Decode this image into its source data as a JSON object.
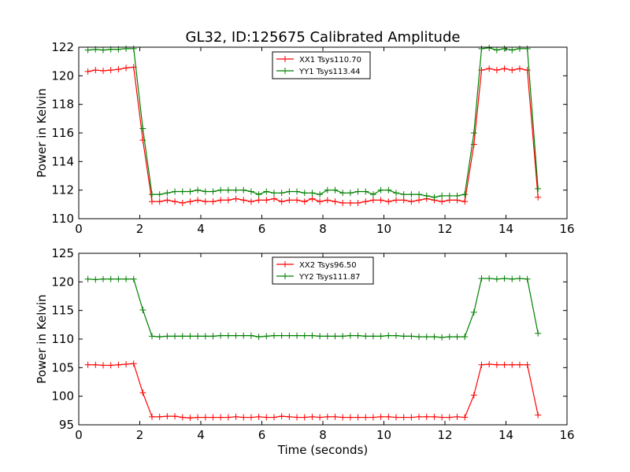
{
  "figure": {
    "title": "GL32, ID:125675 Calibrated Amplitude"
  },
  "chart_data": [
    {
      "type": "line",
      "xlabel": "",
      "ylabel": "Power in Kelvin",
      "xlim": [
        0,
        16
      ],
      "ylim": [
        110,
        122
      ],
      "xticks": [
        0,
        2,
        4,
        6,
        8,
        10,
        12,
        14,
        16
      ],
      "yticks": [
        110,
        112,
        114,
        116,
        118,
        120,
        122
      ],
      "grid": false,
      "legend_position": "top-center",
      "x": [
        0.3,
        0.55,
        0.8,
        1.05,
        1.3,
        1.55,
        1.8,
        2.1,
        2.4,
        2.65,
        2.9,
        3.15,
        3.4,
        3.65,
        3.9,
        4.15,
        4.4,
        4.65,
        4.9,
        5.15,
        5.4,
        5.65,
        5.9,
        6.15,
        6.4,
        6.65,
        6.9,
        7.15,
        7.4,
        7.65,
        7.9,
        8.15,
        8.4,
        8.65,
        8.9,
        9.15,
        9.4,
        9.65,
        9.9,
        10.15,
        10.4,
        10.65,
        10.9,
        11.15,
        11.4,
        11.65,
        11.9,
        12.15,
        12.4,
        12.65,
        12.95,
        13.2,
        13.45,
        13.7,
        13.95,
        14.2,
        14.45,
        14.7,
        15.05
      ],
      "series": [
        {
          "name": "XX1 Tsys110.70",
          "color": "#ff0000",
          "values": [
            120.3,
            120.4,
            120.35,
            120.4,
            120.45,
            120.55,
            120.6,
            115.5,
            111.2,
            111.2,
            111.3,
            111.2,
            111.1,
            111.2,
            111.3,
            111.2,
            111.2,
            111.3,
            111.3,
            111.4,
            111.3,
            111.2,
            111.3,
            111.3,
            111.4,
            111.2,
            111.3,
            111.3,
            111.2,
            111.4,
            111.2,
            111.3,
            111.2,
            111.1,
            111.1,
            111.1,
            111.2,
            111.3,
            111.3,
            111.2,
            111.3,
            111.3,
            111.2,
            111.3,
            111.4,
            111.3,
            111.2,
            111.3,
            111.3,
            111.2,
            115.2,
            120.4,
            120.5,
            120.4,
            120.5,
            120.4,
            120.5,
            120.4,
            111.5
          ]
        },
        {
          "name": "YY1 Tsys113.44",
          "color": "#008000",
          "values": [
            121.8,
            121.85,
            121.8,
            121.85,
            121.85,
            121.9,
            121.9,
            116.3,
            111.7,
            111.7,
            111.8,
            111.9,
            111.9,
            111.9,
            112.0,
            111.9,
            111.9,
            112.0,
            112.0,
            112.0,
            112.0,
            111.9,
            111.7,
            111.9,
            111.8,
            111.8,
            111.9,
            111.9,
            111.8,
            111.8,
            111.7,
            112.0,
            112.0,
            111.8,
            111.8,
            111.9,
            111.9,
            111.7,
            112.0,
            112.0,
            111.8,
            111.7,
            111.7,
            111.7,
            111.6,
            111.5,
            111.6,
            111.6,
            111.6,
            111.7,
            116.0,
            121.9,
            121.95,
            121.8,
            121.9,
            121.8,
            121.9,
            121.9,
            112.1
          ]
        }
      ]
    },
    {
      "type": "line",
      "xlabel": "Time (seconds)",
      "ylabel": "Power in Kelvin",
      "xlim": [
        0,
        16
      ],
      "ylim": [
        95,
        125
      ],
      "xticks": [
        0,
        2,
        4,
        6,
        8,
        10,
        12,
        14,
        16
      ],
      "yticks": [
        95,
        100,
        105,
        110,
        115,
        120,
        125
      ],
      "grid": false,
      "legend_position": "top-center",
      "x": [
        0.3,
        0.55,
        0.8,
        1.05,
        1.3,
        1.55,
        1.8,
        2.1,
        2.4,
        2.65,
        2.9,
        3.15,
        3.4,
        3.65,
        3.9,
        4.15,
        4.4,
        4.65,
        4.9,
        5.15,
        5.4,
        5.65,
        5.9,
        6.15,
        6.4,
        6.65,
        6.9,
        7.15,
        7.4,
        7.65,
        7.9,
        8.15,
        8.4,
        8.65,
        8.9,
        9.15,
        9.4,
        9.65,
        9.9,
        10.15,
        10.4,
        10.65,
        10.9,
        11.15,
        11.4,
        11.65,
        11.9,
        12.15,
        12.4,
        12.65,
        12.95,
        13.2,
        13.45,
        13.7,
        13.95,
        14.2,
        14.45,
        14.7,
        15.05
      ],
      "series": [
        {
          "name": "XX2 Tsys96.50",
          "color": "#ff0000",
          "values": [
            105.5,
            105.5,
            105.4,
            105.4,
            105.5,
            105.6,
            105.7,
            100.6,
            96.4,
            96.4,
            96.5,
            96.5,
            96.3,
            96.2,
            96.3,
            96.3,
            96.3,
            96.3,
            96.3,
            96.4,
            96.3,
            96.3,
            96.4,
            96.3,
            96.3,
            96.5,
            96.4,
            96.3,
            96.3,
            96.4,
            96.3,
            96.4,
            96.4,
            96.3,
            96.3,
            96.3,
            96.3,
            96.3,
            96.4,
            96.4,
            96.3,
            96.3,
            96.3,
            96.4,
            96.4,
            96.4,
            96.3,
            96.3,
            96.4,
            96.3,
            100.2,
            105.5,
            105.6,
            105.5,
            105.5,
            105.5,
            105.5,
            105.5,
            96.7
          ]
        },
        {
          "name": "YY2 Tsys111.87",
          "color": "#008000",
          "values": [
            120.5,
            120.4,
            120.5,
            120.5,
            120.5,
            120.5,
            120.5,
            115.1,
            110.5,
            110.4,
            110.5,
            110.5,
            110.5,
            110.5,
            110.5,
            110.5,
            110.5,
            110.6,
            110.6,
            110.6,
            110.6,
            110.6,
            110.4,
            110.5,
            110.6,
            110.6,
            110.6,
            110.6,
            110.6,
            110.6,
            110.5,
            110.5,
            110.5,
            110.5,
            110.6,
            110.6,
            110.5,
            110.5,
            110.5,
            110.6,
            110.6,
            110.5,
            110.5,
            110.4,
            110.4,
            110.4,
            110.3,
            110.4,
            110.4,
            110.4,
            114.7,
            120.6,
            120.6,
            120.5,
            120.6,
            120.5,
            120.6,
            120.5,
            111.0
          ]
        }
      ]
    }
  ]
}
